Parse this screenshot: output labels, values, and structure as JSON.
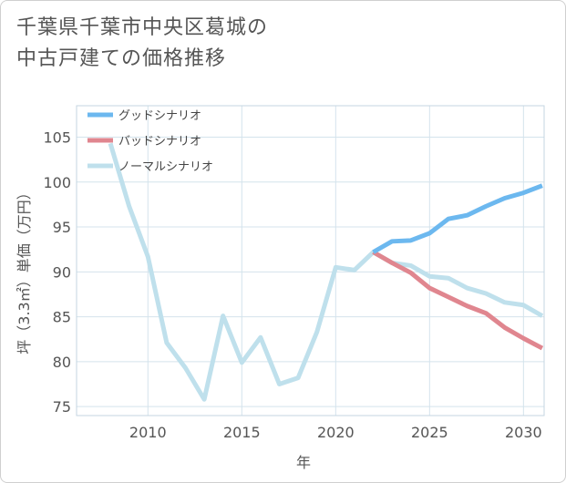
{
  "title": {
    "line1": "千葉県千葉市中央区葛城の",
    "line2": "中古戸建ての価格推移"
  },
  "chart_data": {
    "type": "line",
    "title": "千葉県千葉市中央区葛城の中古戸建ての価格推移",
    "xlabel": "年",
    "ylabel": "坪（3.3㎡）単価（万円）",
    "xlim": [
      2006.2,
      2031.1
    ],
    "ylim": [
      74,
      108.5
    ],
    "xticks": [
      2010,
      2015,
      2020,
      2025,
      2030
    ],
    "yticks": [
      75,
      80,
      85,
      90,
      95,
      100,
      105
    ],
    "grid": true,
    "legend_position": "top-left",
    "series": [
      {
        "name": "グッドシナリオ",
        "color": "#6cb8ef",
        "x": [
          2022,
          2023,
          2024,
          2025,
          2026,
          2027,
          2028,
          2029,
          2030,
          2031
        ],
        "values": [
          92.2,
          93.4,
          93.5,
          94.3,
          95.9,
          96.3,
          97.3,
          98.2,
          98.8,
          99.6
        ]
      },
      {
        "name": "バッドシナリオ",
        "color": "#e0868f",
        "x": [
          2022,
          2023,
          2024,
          2025,
          2026,
          2027,
          2028,
          2029,
          2030,
          2031
        ],
        "values": [
          92.2,
          91.0,
          89.9,
          88.2,
          87.2,
          86.2,
          85.4,
          83.8,
          82.6,
          81.5
        ]
      },
      {
        "name": "ノーマルシナリオ",
        "color": "#bfe0ec",
        "x": [
          2008,
          2009,
          2010,
          2011,
          2012,
          2013,
          2014,
          2015,
          2016,
          2017,
          2018,
          2019,
          2020,
          2021,
          2022,
          2023,
          2024,
          2025,
          2026,
          2027,
          2028,
          2029,
          2030,
          2031
        ],
        "values": [
          104.3,
          97.3,
          91.7,
          82.1,
          79.3,
          75.8,
          85.1,
          79.9,
          82.7,
          77.5,
          78.2,
          83.3,
          90.5,
          90.2,
          92.2,
          91.0,
          90.7,
          89.5,
          89.3,
          88.2,
          87.6,
          86.6,
          86.3,
          85.1
        ]
      }
    ]
  }
}
